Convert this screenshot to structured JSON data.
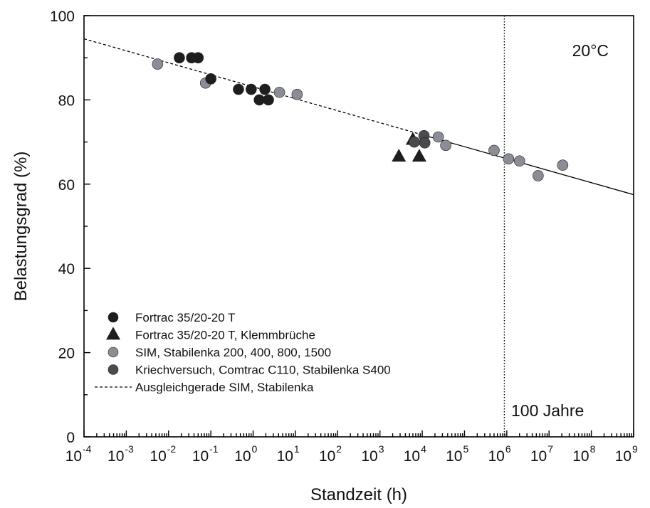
{
  "chart_data": {
    "type": "scatter",
    "title": "",
    "xlabel": "Standzeit (h)",
    "ylabel": "Belastungsgrad (%)",
    "x_scale": "log",
    "xlim": [
      0.0001,
      1000000000
    ],
    "ylim": [
      0,
      100
    ],
    "x_ticks": [
      {
        "base": "10",
        "exp": "-4",
        "value": 0.0001
      },
      {
        "base": "10",
        "exp": "-3",
        "value": 0.001
      },
      {
        "base": "10",
        "exp": "-2",
        "value": 0.01
      },
      {
        "base": "10",
        "exp": "-1",
        "value": 0.1
      },
      {
        "base": "10",
        "exp": "0",
        "value": 1
      },
      {
        "base": "10",
        "exp": "1",
        "value": 10
      },
      {
        "base": "10",
        "exp": "2",
        "value": 100
      },
      {
        "base": "10",
        "exp": "3",
        "value": 1000
      },
      {
        "base": "10",
        "exp": "4",
        "value": 10000
      },
      {
        "base": "10",
        "exp": "5",
        "value": 100000
      },
      {
        "base": "10",
        "exp": "6",
        "value": 1000000
      },
      {
        "base": "10",
        "exp": "7",
        "value": 10000000
      },
      {
        "base": "10",
        "exp": "8",
        "value": 100000000
      },
      {
        "base": "10",
        "exp": "9",
        "value": 1000000000
      }
    ],
    "y_ticks": [
      {
        "label": "0",
        "value": 0
      },
      {
        "label": "20",
        "value": 20
      },
      {
        "label": "40",
        "value": 40
      },
      {
        "label": "60",
        "value": 60
      },
      {
        "label": "80",
        "value": 80
      },
      {
        "label": "100",
        "value": 100
      }
    ],
    "grid": false,
    "legend_position": "bottom-left",
    "annotations": {
      "temperature": "20°C",
      "vline_label": "100 Jahre",
      "vline_x": 876000
    },
    "series": [
      {
        "name": "Fortrac 35/20-20 T",
        "marker": "circle",
        "color": "#1e1e1e",
        "points": [
          [
            0.018,
            90
          ],
          [
            0.035,
            90
          ],
          [
            0.05,
            90
          ],
          [
            0.1,
            85
          ],
          [
            0.45,
            82.5
          ],
          [
            0.9,
            82.5
          ],
          [
            1.4,
            80
          ],
          [
            1.9,
            82.5
          ],
          [
            2.3,
            80
          ]
        ]
      },
      {
        "name": "Fortrac 35/20-20 T, Klemmbrüche",
        "marker": "triangle",
        "color": "#1e1e1e",
        "points": [
          [
            2800,
            66.5
          ],
          [
            8500,
            66.5
          ],
          [
            6000,
            70.5
          ]
        ]
      },
      {
        "name": "SIM, Stabilenka 200, 400, 800, 1500",
        "marker": "circle",
        "color": "#8a8d96",
        "points": [
          [
            0.0055,
            88.5
          ],
          [
            0.075,
            84
          ],
          [
            4.2,
            81.8
          ],
          [
            11,
            81.3
          ],
          [
            24000,
            71.2
          ],
          [
            36000,
            69.2
          ],
          [
            500000,
            68
          ],
          [
            1100000,
            66
          ],
          [
            2000000,
            65.5
          ],
          [
            5500000,
            62
          ],
          [
            21000000,
            64.5
          ]
        ]
      },
      {
        "name": "Kriechversuch, Comtrac C110, Stabilenka S400",
        "marker": "circle",
        "color": "#4a4a4f",
        "points": [
          [
            6500,
            70
          ],
          [
            11000,
            71.5
          ],
          [
            11500,
            69.8
          ]
        ]
      },
      {
        "name": "Ausgleichgerade SIM, Stabilenka",
        "marker": "line",
        "color": "#000000",
        "points": [
          [
            0.0001,
            94.5
          ],
          [
            1000000000,
            57.5
          ]
        ]
      }
    ]
  },
  "colors": {
    "background": "#ffffff",
    "axis": "#000000"
  }
}
